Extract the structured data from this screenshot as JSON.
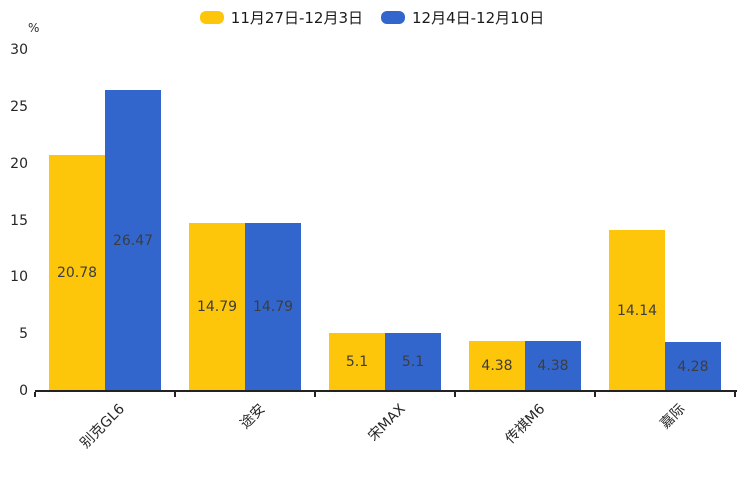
{
  "chart_data": {
    "type": "bar",
    "title": "",
    "categories": [
      "别克GL6",
      "途安",
      "宋MAX",
      "传祺M6",
      "嘉际"
    ],
    "series": [
      {
        "name": "11月27日-12月3日",
        "color": "#FDC60B",
        "values": [
          20.78,
          14.79,
          5.1,
          4.38,
          14.14
        ]
      },
      {
        "name": "12月4日-12月10日",
        "color": "#3366CD",
        "values": [
          26.47,
          14.79,
          5.1,
          4.38,
          4.28
        ]
      }
    ],
    "ylabel": "%",
    "yticks": [
      0,
      5,
      10,
      15,
      20,
      25,
      30
    ],
    "ylim": [
      0,
      30
    ],
    "grid": false,
    "legend_position": "top",
    "bar_labels_inside": true,
    "value_label_color": "#3d3d3d",
    "axis_color": "#222222",
    "text_color": "#262626"
  }
}
